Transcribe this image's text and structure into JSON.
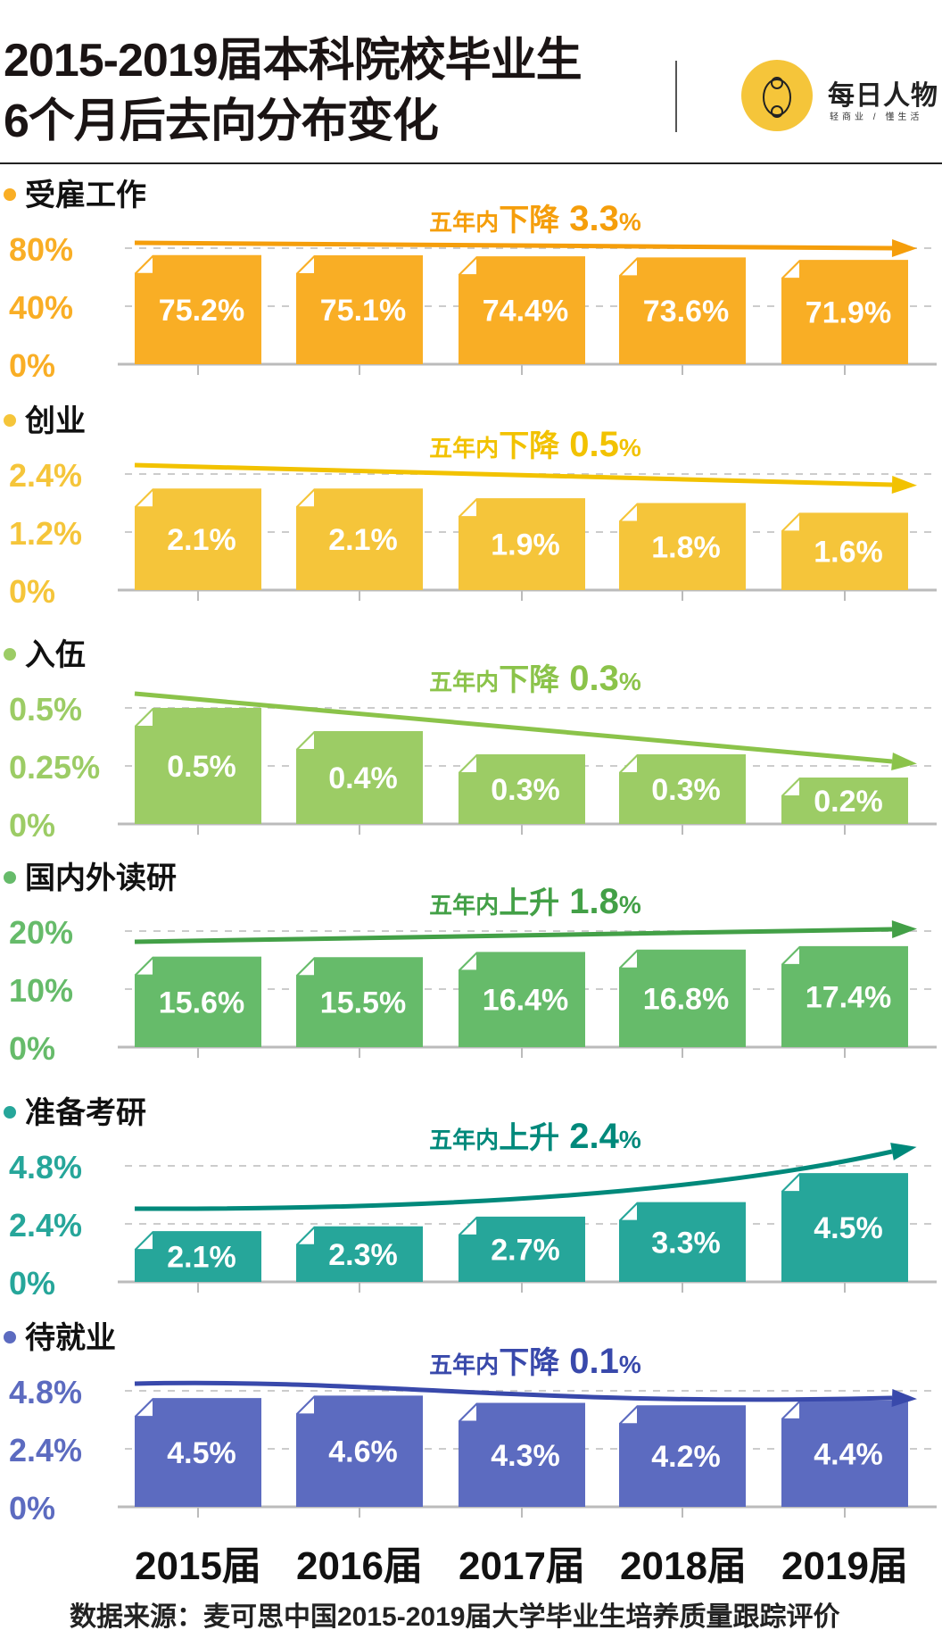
{
  "header": {
    "title_line1": "2015-2019届本科院校毕业生",
    "title_line2": "6个月后去向分布变化",
    "logo_name": "每日人物",
    "logo_slogan": "轻商业 / 懂生活"
  },
  "chart_data": {
    "type": "bar",
    "categories": [
      "2015届",
      "2016届",
      "2017届",
      "2018届",
      "2019届"
    ],
    "panels": [
      {
        "name": "受雇工作",
        "values": [
          75.2,
          75.1,
          74.4,
          73.6,
          71.9
        ],
        "labels": [
          "75.2%",
          "75.1%",
          "74.4%",
          "73.6%",
          "71.9%"
        ],
        "yticks": [
          "80%",
          "40%",
          "0%"
        ],
        "ylim": [
          0,
          80
        ],
        "trend_prefix": "五年内",
        "trend_word": "下降",
        "trend_value": "3.3",
        "trend_unit": "%",
        "color": "#F9AE25",
        "arrow_color": "#F59E0B"
      },
      {
        "name": "创业",
        "values": [
          2.1,
          2.1,
          1.9,
          1.8,
          1.6
        ],
        "labels": [
          "2.1%",
          "2.1%",
          "1.9%",
          "1.8%",
          "1.6%"
        ],
        "yticks": [
          "2.4%",
          "1.2%",
          "0%"
        ],
        "ylim": [
          0,
          2.4
        ],
        "trend_prefix": "五年内",
        "trend_word": "下降",
        "trend_value": "0.5",
        "trend_unit": "%",
        "color": "#F5C53A",
        "arrow_color": "#F2C200"
      },
      {
        "name": "入伍",
        "values": [
          0.5,
          0.4,
          0.3,
          0.3,
          0.2
        ],
        "labels": [
          "0.5%",
          "0.4%",
          "0.3%",
          "0.3%",
          "0.2%"
        ],
        "yticks": [
          "0.5%",
          "0.25%",
          "0%"
        ],
        "ylim": [
          0,
          0.5
        ],
        "trend_prefix": "五年内",
        "trend_word": "下降",
        "trend_value": "0.3",
        "trend_unit": "%",
        "color": "#9CCC65",
        "arrow_color": "#8BC34A"
      },
      {
        "name": "国内外读研",
        "values": [
          15.6,
          15.5,
          16.4,
          16.8,
          17.4
        ],
        "labels": [
          "15.6%",
          "15.5%",
          "16.4%",
          "16.8%",
          "17.4%"
        ],
        "yticks": [
          "20%",
          "10%",
          "0%"
        ],
        "ylim": [
          0,
          20
        ],
        "trend_prefix": "五年内",
        "trend_word": "上升",
        "trend_value": "1.8",
        "trend_unit": "%",
        "color": "#66BB6A",
        "arrow_color": "#43A047"
      },
      {
        "name": "准备考研",
        "values": [
          2.1,
          2.3,
          2.7,
          3.3,
          4.5
        ],
        "labels": [
          "2.1%",
          "2.3%",
          "2.7%",
          "3.3%",
          "4.5%"
        ],
        "yticks": [
          "4.8%",
          "2.4%",
          "0%"
        ],
        "ylim": [
          0,
          4.8
        ],
        "trend_prefix": "五年内",
        "trend_word": "上升",
        "trend_value": "2.4",
        "trend_unit": "%",
        "color": "#26A69A",
        "arrow_color": "#00897B"
      },
      {
        "name": "待就业",
        "values": [
          4.5,
          4.6,
          4.3,
          4.2,
          4.4
        ],
        "labels": [
          "4.5%",
          "4.6%",
          "4.3%",
          "4.2%",
          "4.4%"
        ],
        "yticks": [
          "4.8%",
          "2.4%",
          "0%"
        ],
        "ylim": [
          0,
          4.8
        ],
        "trend_prefix": "五年内",
        "trend_word": "下降",
        "trend_value": "0.1",
        "trend_unit": "%",
        "color": "#5C6BC0",
        "arrow_color": "#3949AB"
      }
    ],
    "grid": true
  },
  "footer": {
    "source": "数据来源：麦可思中国2015-2019届大学毕业生培养质量跟踪评价"
  }
}
